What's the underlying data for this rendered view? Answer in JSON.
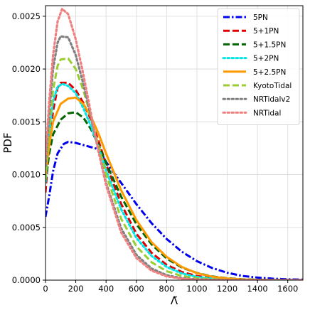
{
  "chart_data": {
    "type": "line",
    "xlabel": "Λ̃",
    "ylabel": "PDF",
    "xlim": [
      0,
      1700
    ],
    "ylim": [
      0,
      0.0026
    ],
    "xticks": [
      0,
      200,
      400,
      600,
      800,
      1000,
      1200,
      1400,
      1600
    ],
    "xtick_labels": [
      "0",
      "200",
      "400",
      "600",
      "800",
      "1000",
      "1200",
      "1400",
      "1600"
    ],
    "yticks": [
      0,
      0.0005,
      0.001,
      0.0015,
      0.002,
      0.0025
    ],
    "ytick_labels": [
      "0.0000",
      "0.0005",
      "0.0010",
      "0.0015",
      "0.0020",
      "0.0025"
    ],
    "grid": true,
    "legend_position": "top-right",
    "series": [
      {
        "name": "5PN",
        "color": "#0000ee",
        "style": "dashdot",
        "x": [
          0,
          25,
          50,
          80,
          120,
          150,
          200,
          250,
          300,
          350,
          400,
          500,
          600,
          700,
          800,
          900,
          1000,
          1100,
          1200,
          1300,
          1400,
          1500,
          1600,
          1700
        ],
        "y": [
          0.0006,
          0.0008,
          0.00103,
          0.0012,
          0.00129,
          0.00131,
          0.0013,
          0.00128,
          0.00126,
          0.00124,
          0.00112,
          0.00092,
          0.00072,
          0.00054,
          0.00039,
          0.00027,
          0.00018,
          0.000115,
          7e-05,
          4e-05,
          2.4e-05,
          1.4e-05,
          8e-06,
          5e-06
        ]
      },
      {
        "name": "5+1PN",
        "color": "#e00000",
        "style": "dashed",
        "x": [
          0,
          25,
          50,
          80,
          100,
          150,
          200,
          250,
          300,
          350,
          400,
          500,
          600,
          700,
          800,
          900,
          1000,
          1100,
          1200,
          1300,
          1400,
          1500,
          1600,
          1700
        ],
        "y": [
          0.00083,
          0.0013,
          0.0016,
          0.00182,
          0.00187,
          0.00187,
          0.0018,
          0.00168,
          0.00152,
          0.00132,
          0.0011,
          0.00072,
          0.00044,
          0.00026,
          0.000145,
          7.8e-05,
          4e-05,
          2e-05,
          1e-05,
          5e-06,
          2e-06,
          1e-06,
          0,
          0
        ]
      },
      {
        "name": "5+1.5PN",
        "color": "#006400",
        "style": "dashed",
        "x": [
          0,
          25,
          50,
          100,
          150,
          200,
          250,
          300,
          350,
          400,
          500,
          600,
          700,
          800,
          900,
          1000,
          1100,
          1200,
          1300,
          1400,
          1500,
          1600,
          1700
        ],
        "y": [
          0.00093,
          0.0012,
          0.00138,
          0.00152,
          0.00158,
          0.00159,
          0.00154,
          0.00143,
          0.00128,
          0.00111,
          0.00079,
          0.00053,
          0.00034,
          0.000205,
          0.00012,
          6.8e-05,
          3.6e-05,
          1.8e-05,
          9e-06,
          4e-06,
          2e-06,
          1e-06,
          0
        ]
      },
      {
        "name": "5+2PN",
        "color": "#00e5e5",
        "style": "dotted",
        "x": [
          0,
          25,
          50,
          80,
          110,
          150,
          200,
          250,
          300,
          350,
          400,
          500,
          600,
          700,
          800,
          900,
          1000,
          1100,
          1200,
          1300,
          1400,
          1500,
          1600,
          1700
        ],
        "y": [
          0.00093,
          0.0014,
          0.0017,
          0.00183,
          0.00186,
          0.00184,
          0.00177,
          0.00163,
          0.00146,
          0.00126,
          0.00104,
          0.00067,
          0.0004,
          0.00023,
          0.000125,
          6.4e-05,
          3.1e-05,
          1.5e-05,
          7e-06,
          3e-06,
          1e-06,
          0,
          0,
          0
        ]
      },
      {
        "name": "5+2.5PN",
        "color": "#ff9900",
        "style": "solid",
        "x": [
          0,
          25,
          50,
          100,
          150,
          200,
          250,
          300,
          350,
          400,
          500,
          600,
          700,
          800,
          900,
          1000,
          1100,
          1200,
          1300,
          1400,
          1500,
          1600,
          1700
        ],
        "y": [
          0.001,
          0.00128,
          0.0015,
          0.00167,
          0.00172,
          0.00173,
          0.00167,
          0.00155,
          0.00139,
          0.0012,
          0.00085,
          0.00057,
          0.00036,
          0.00022,
          0.000125,
          6.6e-05,
          3.3e-05,
          1.6e-05,
          7e-06,
          3e-06,
          1e-06,
          0,
          0
        ]
      },
      {
        "name": "KyotoTidal",
        "color": "#9acd32",
        "style": "dashed",
        "x": [
          0,
          25,
          50,
          80,
          100,
          150,
          200,
          250,
          300,
          350,
          400,
          500,
          600,
          700,
          800,
          900,
          1000,
          1100,
          1200,
          1300,
          1400,
          1500,
          1600,
          1700
        ],
        "y": [
          0.00095,
          0.00145,
          0.0018,
          0.00203,
          0.00209,
          0.0021,
          0.002,
          0.0018,
          0.00155,
          0.00127,
          0.001,
          0.00058,
          0.00032,
          0.00017,
          8.5e-05,
          4e-05,
          1.8e-05,
          8e-06,
          3e-06,
          1e-06,
          0,
          0,
          0,
          0
        ]
      },
      {
        "name": "NRTidalv2",
        "color": "#808080",
        "style": "dotted",
        "x": [
          0,
          25,
          50,
          80,
          100,
          150,
          200,
          250,
          300,
          350,
          400,
          500,
          600,
          700,
          800,
          900,
          1000,
          1100,
          1200,
          1300,
          1400,
          1500,
          1600,
          1700
        ],
        "y": [
          0.00108,
          0.0016,
          0.002,
          0.00225,
          0.00231,
          0.0023,
          0.00213,
          0.00186,
          0.00155,
          0.00122,
          0.00092,
          0.00049,
          0.00024,
          0.00011,
          4.7e-05,
          1.9e-05,
          7e-06,
          3e-06,
          1e-06,
          0,
          0,
          0,
          0,
          0
        ]
      },
      {
        "name": "NRTidal",
        "color": "#f08080",
        "style": "dotted",
        "x": [
          0,
          25,
          50,
          80,
          110,
          150,
          200,
          250,
          300,
          350,
          400,
          500,
          600,
          700,
          800,
          900,
          1000,
          1100,
          1200,
          1300,
          1400,
          1500,
          1600,
          1700
        ],
        "y": [
          0.00115,
          0.0017,
          0.00213,
          0.00245,
          0.00257,
          0.00252,
          0.00228,
          0.00195,
          0.00158,
          0.00122,
          0.0009,
          0.00045,
          0.00021,
          9e-05,
          3.6e-05,
          1.4e-05,
          5e-06,
          2e-06,
          1e-06,
          0,
          0,
          0,
          0,
          0
        ]
      }
    ]
  }
}
